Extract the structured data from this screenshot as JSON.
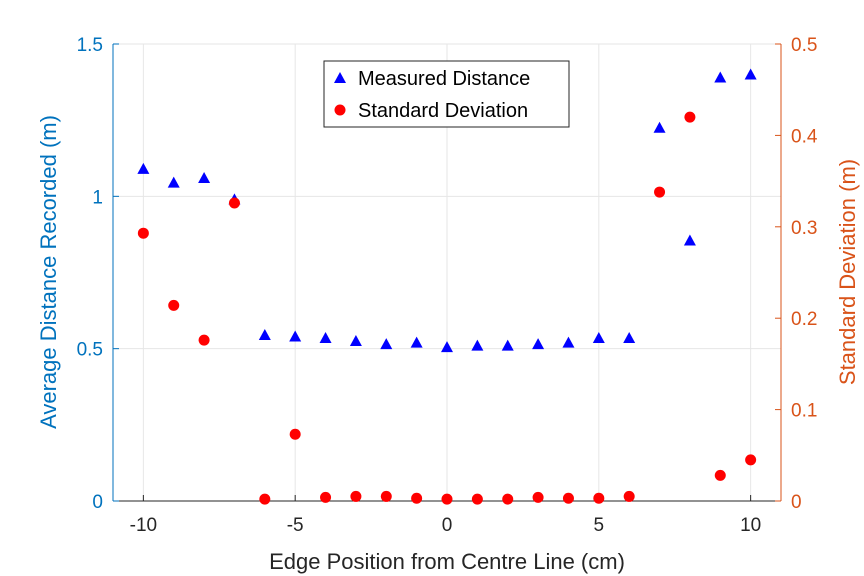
{
  "chart_data": {
    "type": "scatter",
    "xlabel": "Edge Position from Centre Line (cm)",
    "ylabel_left": "Average Distance Recorded (m)",
    "ylabel_right": "Standard Deviation (m)",
    "xlim": [
      -11,
      11
    ],
    "ylim_left": [
      0,
      1.5
    ],
    "ylim_right": [
      0,
      0.5
    ],
    "xticks": [
      -10,
      -5,
      0,
      5,
      10
    ],
    "yticks_left": [
      0,
      0.5,
      1,
      1.5
    ],
    "yticks_right": [
      0,
      0.1,
      0.2,
      0.3,
      0.4,
      0.5
    ],
    "grid": true,
    "legend_position": "top-center",
    "colors": {
      "left_axis": "#0072BD",
      "right_axis": "#D95319",
      "grid": "#e6e6e6",
      "axis": "#262626"
    },
    "series": [
      {
        "name": "Measured Distance",
        "axis": "left",
        "marker": "triangle",
        "color": "#0000ff",
        "x": [
          -10,
          -9,
          -8,
          -7,
          -6,
          -5,
          -4,
          -3,
          -2,
          -1,
          0,
          1,
          2,
          3,
          4,
          5,
          6,
          7,
          8,
          9,
          10
        ],
        "y": [
          1.09,
          1.045,
          1.06,
          0.99,
          0.545,
          0.54,
          0.535,
          0.525,
          0.515,
          0.52,
          0.505,
          0.51,
          0.51,
          0.515,
          0.52,
          0.535,
          0.535,
          1.225,
          0.855,
          1.39,
          1.4
        ]
      },
      {
        "name": "Standard Deviation",
        "axis": "right",
        "marker": "circle",
        "color": "#ff0000",
        "x": [
          -10,
          -9,
          -8,
          -7,
          -6,
          -5,
          -4,
          -3,
          -2,
          -1,
          0,
          1,
          2,
          3,
          4,
          5,
          6,
          7,
          8,
          9,
          10
        ],
        "y": [
          0.293,
          0.214,
          0.176,
          0.326,
          0.002,
          0.073,
          0.004,
          0.005,
          0.005,
          0.003,
          0.002,
          0.002,
          0.002,
          0.004,
          0.003,
          0.003,
          0.005,
          0.338,
          0.42,
          0.028,
          0.045
        ]
      }
    ]
  }
}
